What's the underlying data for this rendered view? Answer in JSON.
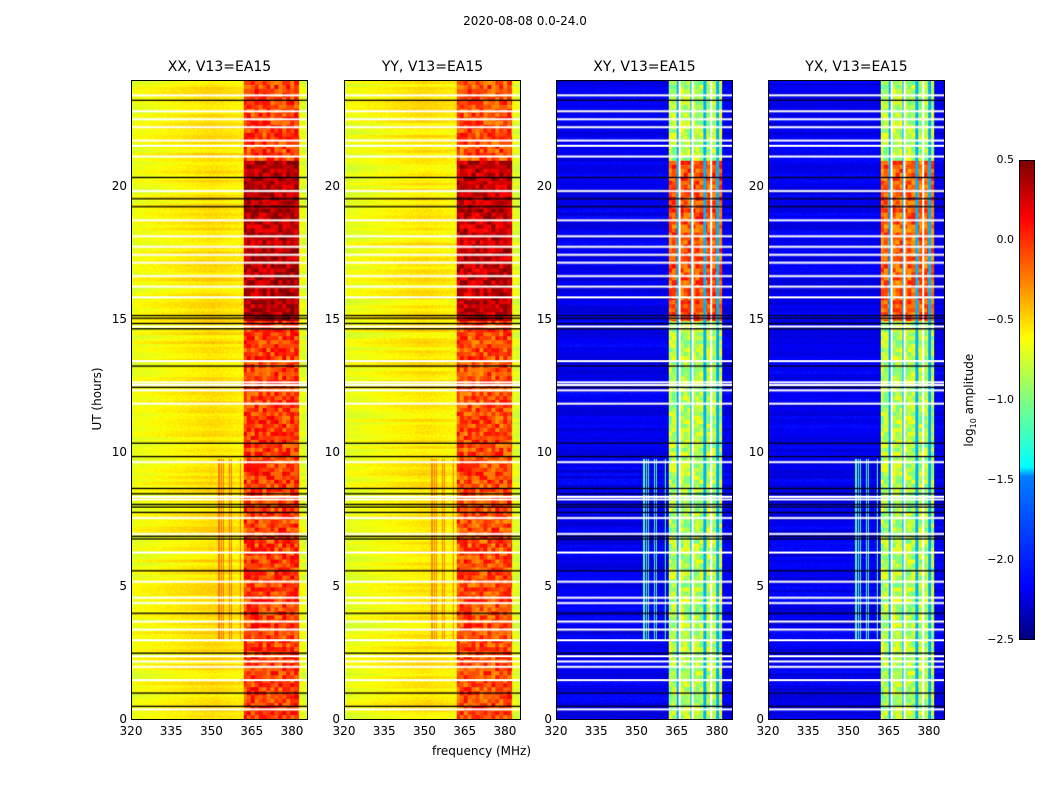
{
  "suptitle": "2020-08-08 0.0-24.0",
  "chart_data": {
    "type": "heatmap",
    "title": "2020-08-08 0.0-24.0",
    "xlabel": "frequency (MHz)",
    "ylabel": "UT (hours)",
    "xlim": [
      320,
      386
    ],
    "ylim": [
      0,
      24
    ],
    "xticks": [
      320,
      335,
      350,
      365,
      380
    ],
    "yticks": [
      0,
      5,
      10,
      15,
      20
    ],
    "colorbar": {
      "label": "log10 amplitude",
      "label_main": "log",
      "label_sub": "10",
      "label_rest": " amplitude",
      "range": [
        -2.5,
        0.5
      ],
      "ticks": [
        "0.5",
        "0.0",
        "−0.5",
        "−1.0",
        "−1.5",
        "−2.0",
        "−2.5"
      ],
      "colormap": "jet"
    },
    "panels": [
      {
        "title": "XX, V13=EA15",
        "background": -0.6,
        "band": [
          362,
          383
        ],
        "band_level": -0.05,
        "band_peak_hours": [
          15,
          21
        ],
        "band_peak_level": 0.35,
        "rfi_streaks": {
          "freq": [
            350,
            362
          ],
          "time": [
            3,
            9.8
          ],
          "level": -0.2
        },
        "flag_color": "#000000"
      },
      {
        "title": "YY, V13=EA15",
        "background": -0.62,
        "band": [
          362,
          383
        ],
        "band_level": -0.1,
        "band_peak_hours": [
          15,
          21
        ],
        "band_peak_level": 0.3,
        "rfi_streaks": {
          "freq": [
            350,
            362
          ],
          "time": [
            3,
            9.8
          ],
          "level": -0.25
        },
        "flag_color": "#000000"
      },
      {
        "title": "XY, V13=EA15",
        "background": -2.25,
        "band": [
          362,
          382
        ],
        "band_level": -0.85,
        "band_peak_hours": [
          15,
          21
        ],
        "band_peak_level": -0.1,
        "rfi_streaks": {
          "freq": [
            350,
            362
          ],
          "time": [
            3,
            9.8
          ],
          "level": -1.1
        },
        "flag_color": "#000022"
      },
      {
        "title": "YX, V13=EA15",
        "background": -2.25,
        "band": [
          362,
          382
        ],
        "band_level": -0.85,
        "band_peak_hours": [
          15,
          21
        ],
        "band_peak_level": -0.15,
        "rfi_streaks": {
          "freq": [
            350,
            362
          ],
          "time": [
            3,
            9.8
          ],
          "level": -1.1
        },
        "flag_color": "#000022"
      }
    ],
    "flagged_channels_mhz": [
      366,
      371,
      378
    ],
    "white_flag_hours": [
      0.4,
      1.5,
      2.0,
      2.2,
      2.4,
      3.0,
      3.4,
      3.7,
      4.4,
      4.6,
      5.2,
      6.3,
      7.0,
      7.6,
      8.3,
      8.4,
      9.7,
      11.9,
      12.4,
      12.6,
      12.7,
      13.5,
      14.8,
      15.9,
      16.3,
      16.7,
      17.2,
      17.5,
      17.8,
      18.2,
      18.8,
      19.9,
      21.2,
      21.6,
      21.8,
      22.3,
      22.6,
      22.9,
      23.5
    ],
    "dark_flag_hours": [
      0.5,
      1.0,
      2.5,
      4.0,
      5.6,
      6.8,
      6.9,
      7.8,
      8.0,
      8.1,
      8.5,
      8.7,
      9.9,
      10.4,
      12.5,
      13.3,
      14.7,
      14.9,
      15.1,
      15.2,
      19.3,
      19.6,
      20.4,
      23.3
    ]
  }
}
